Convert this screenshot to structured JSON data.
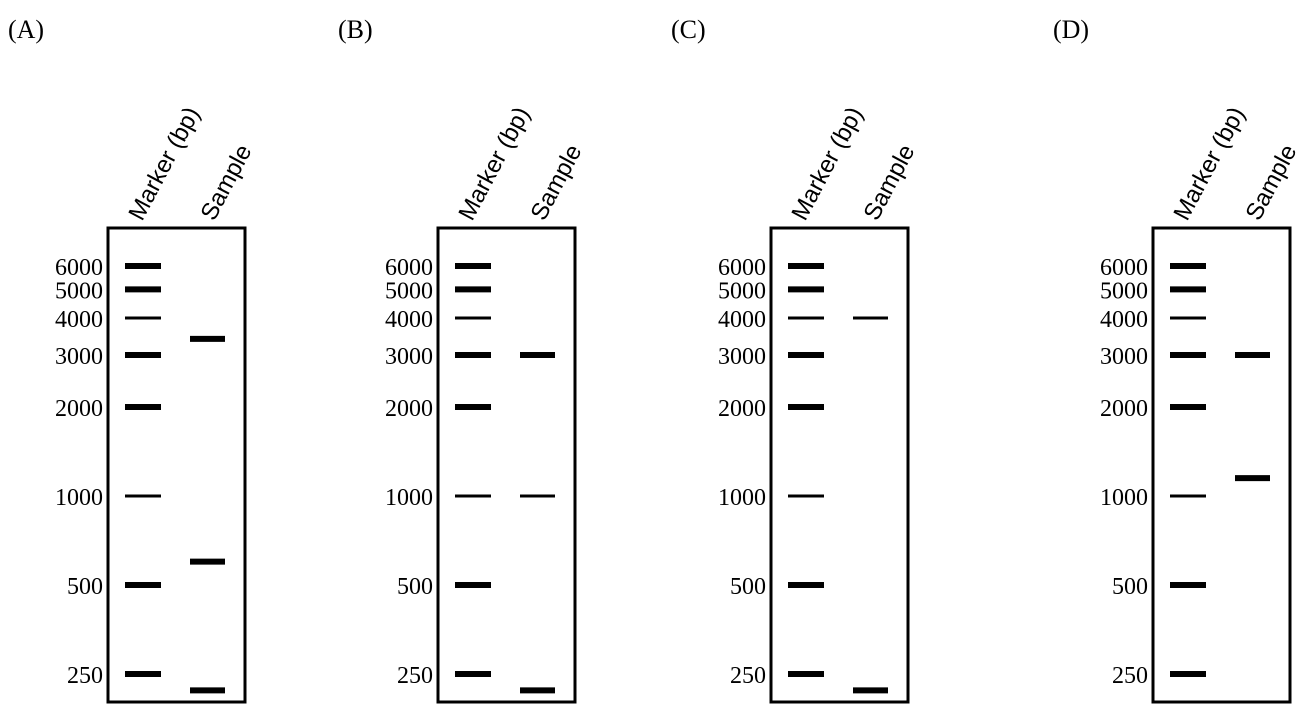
{
  "figure": {
    "marker_lane_label": "Marker (bp)",
    "sample_lane_label": "Sample",
    "ink_color": "#000000",
    "background_color": "#ffffff"
  },
  "marker_ladder": [
    {
      "label": "6000",
      "bp": 6000,
      "thick": true
    },
    {
      "label": "5000",
      "bp": 5000,
      "thick": true
    },
    {
      "label": "4000",
      "bp": 4000,
      "thick": false
    },
    {
      "label": "3000",
      "bp": 3000,
      "thick": true
    },
    {
      "label": "2000",
      "bp": 2000,
      "thick": true
    },
    {
      "label": "1000",
      "bp": 1000,
      "thick": false
    },
    {
      "label": "500",
      "bp": 500,
      "thick": true
    },
    {
      "label": "250",
      "bp": 250,
      "thick": true
    }
  ],
  "panels": [
    {
      "id": "A",
      "label": "(A)",
      "sample_bands": [
        {
          "bp": 3400,
          "thick": true
        },
        {
          "bp": 600,
          "thick": true
        },
        {
          "bp": 220,
          "thick": true
        }
      ]
    },
    {
      "id": "B",
      "label": "(B)",
      "sample_bands": [
        {
          "bp": 3000,
          "thick": true
        },
        {
          "bp": 1000,
          "thick": false
        },
        {
          "bp": 220,
          "thick": true
        }
      ]
    },
    {
      "id": "C",
      "label": "(C)",
      "sample_bands": [
        {
          "bp": 4000,
          "thick": false
        },
        {
          "bp": 220,
          "thick": true
        }
      ]
    },
    {
      "id": "D",
      "label": "(D)",
      "sample_bands": [
        {
          "bp": 3000,
          "thick": true
        },
        {
          "bp": 1150,
          "thick": true
        }
      ]
    }
  ]
}
